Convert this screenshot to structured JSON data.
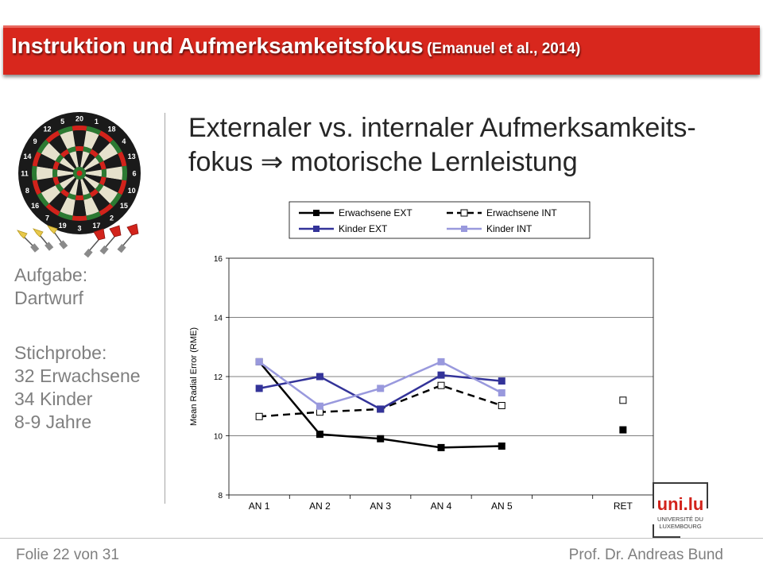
{
  "header": {
    "title": "Instruktion und Aufmerksamkeitsfokus",
    "reference": "(Emanuel et al., 2014)"
  },
  "heading": {
    "line1": "Externaler vs. internaler Aufmerksamkeits-",
    "line2": "fokus ⇒ motorische Lernleistung"
  },
  "sidebar": {
    "task_label": "Aufgabe:",
    "task_value": "Dartwurf",
    "sample_label": "Stichprobe:",
    "sample_adults": "32 Erwachsene",
    "sample_children": "34 Kinder",
    "sample_age": "8-9 Jahre"
  },
  "dartboard": {
    "numbers": [
      "20",
      "1",
      "18",
      "4",
      "13",
      "6",
      "10",
      "15",
      "2",
      "17",
      "3",
      "19",
      "7",
      "16",
      "8",
      "11",
      "14",
      "9",
      "12",
      "5"
    ]
  },
  "logo": {
    "text": "uni.lu",
    "line1": "UNIVERSITÉ DU",
    "line2": "LUXEMBOURG"
  },
  "footer": {
    "slide": "Folie 22 von 31",
    "author": "Prof. Dr. Andreas Bund"
  },
  "chart_data": {
    "type": "line",
    "categories": [
      "AN 1",
      "AN 2",
      "AN 3",
      "AN 4",
      "AN 5",
      "",
      "RET"
    ],
    "ylabel": "Mean Radial Error (RME)",
    "xlabel": "",
    "ylim": [
      8,
      16
    ],
    "yticks": [
      8,
      10,
      12,
      14,
      16
    ],
    "grid": true,
    "legend": "top",
    "series": [
      {
        "name": "Erwachsene EXT",
        "values": [
          12.5,
          10.05,
          9.9,
          9.6,
          9.65,
          null,
          10.2
        ],
        "color": "#000000",
        "marker": "square-filled",
        "dash": false
      },
      {
        "name": "Erwachsene INT",
        "values": [
          10.65,
          10.8,
          10.9,
          11.7,
          11.02,
          null,
          11.2
        ],
        "color": "#000000",
        "marker": "square-open",
        "dash": true
      },
      {
        "name": "Kinder EXT",
        "values": [
          11.6,
          12.0,
          10.9,
          12.05,
          11.85,
          null,
          null
        ],
        "color": "#333399",
        "marker": "square-filled",
        "dash": false
      },
      {
        "name": "Kinder INT",
        "values": [
          12.5,
          11.0,
          11.6,
          12.5,
          11.45,
          null,
          null
        ],
        "color": "#9999dd",
        "marker": "square-filled",
        "dash": false
      }
    ]
  }
}
